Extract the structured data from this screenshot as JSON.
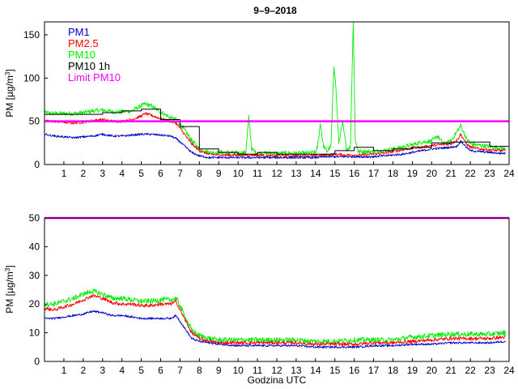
{
  "chart_data": [
    {
      "type": "line",
      "title": "9–9–2018",
      "xlabel": "",
      "ylabel": "PM [µg/m³]",
      "xlim": [
        0,
        24
      ],
      "ylim": [
        0,
        165
      ],
      "x_ticks": [
        1,
        2,
        3,
        4,
        5,
        6,
        7,
        8,
        9,
        10,
        11,
        12,
        13,
        14,
        15,
        16,
        17,
        18,
        19,
        20,
        21,
        22,
        23,
        24
      ],
      "y_ticks": [
        0,
        50,
        100,
        150
      ],
      "legend": [
        "PM1",
        "PM2.5",
        "PM10",
        "PM10 1h",
        "Limit PM10"
      ],
      "limit": {
        "name": "Limit PM10",
        "value": 50,
        "color": "#ff00ff"
      },
      "series": [
        {
          "name": "PM1",
          "color": "#0000cc",
          "noise": 1.2,
          "x": [
            0,
            0.5,
            1,
            1.5,
            2,
            2.5,
            3,
            3.5,
            4,
            4.5,
            5,
            5.5,
            6,
            6.5,
            6.8,
            7,
            7.3,
            7.6,
            8,
            8.5,
            9,
            9.5,
            10,
            10.5,
            11,
            11.5,
            12,
            12.5,
            13,
            13.5,
            14,
            14.5,
            15,
            15.5,
            16,
            16.5,
            17,
            17.5,
            18,
            18.5,
            19,
            19.5,
            20,
            20.5,
            21,
            21.3,
            21.5,
            21.8,
            22,
            22.5,
            23,
            23.5,
            23.8
          ],
          "y": [
            35,
            33,
            32,
            31,
            32,
            33,
            35,
            33,
            33,
            34,
            35,
            35,
            34,
            33,
            30,
            26,
            20,
            14,
            10,
            8,
            8,
            8,
            8,
            8,
            8,
            8,
            8,
            8,
            8,
            8,
            8,
            9,
            9,
            9,
            9,
            9,
            9,
            10,
            11,
            12,
            14,
            16,
            18,
            19,
            20,
            21,
            27,
            20,
            16,
            15,
            14,
            13,
            13
          ]
        },
        {
          "name": "PM2.5",
          "color": "#ff0000",
          "noise": 1.6,
          "x": [
            0,
            0.5,
            1,
            1.5,
            2,
            2.5,
            3,
            3.5,
            4,
            4.5,
            5,
            5.2,
            5.5,
            6,
            6.5,
            6.8,
            7,
            7.3,
            7.6,
            8,
            8.5,
            9,
            9.5,
            10,
            10.5,
            11,
            11.5,
            12,
            12.5,
            13,
            13.5,
            14,
            14.5,
            15,
            15.5,
            16,
            16.5,
            17,
            17.5,
            18,
            18.5,
            19,
            19.5,
            20,
            20.5,
            21,
            21.3,
            21.5,
            21.8,
            22,
            22.5,
            23,
            23.5,
            23.8
          ],
          "y": [
            50,
            50,
            49,
            48,
            49,
            51,
            52,
            50,
            50,
            52,
            56,
            59,
            57,
            53,
            50,
            48,
            42,
            33,
            24,
            16,
            12,
            11,
            11,
            11,
            11,
            11,
            10,
            10,
            10,
            10,
            10,
            10,
            11,
            12,
            11,
            11,
            11,
            12,
            13,
            15,
            17,
            19,
            20,
            22,
            23,
            24,
            28,
            35,
            24,
            20,
            18,
            17,
            16,
            16
          ]
        },
        {
          "name": "PM10",
          "color": "#00ee00",
          "noise": 2.5,
          "x": [
            0,
            0.5,
            1,
            1.5,
            2,
            2.5,
            3,
            3.5,
            4,
            4.5,
            5,
            5.2,
            5.5,
            6,
            6.5,
            6.8,
            7,
            7.3,
            7.6,
            8,
            8.5,
            9,
            9.5,
            10,
            10.4,
            10.55,
            10.7,
            10.9,
            11,
            11.5,
            12,
            12.5,
            13,
            13.5,
            14,
            14.1,
            14.25,
            14.4,
            14.6,
            14.8,
            14.95,
            15.05,
            15.2,
            15.4,
            15.6,
            15.8,
            15.95,
            16.05,
            16.2,
            16.5,
            17,
            17.5,
            18,
            18.5,
            19,
            19.5,
            20,
            20.3,
            20.6,
            21,
            21.3,
            21.5,
            21.8,
            22,
            22.5,
            23,
            23.5,
            23.8
          ],
          "y": [
            60,
            59,
            59,
            59,
            60,
            62,
            63,
            61,
            61,
            62,
            68,
            70,
            68,
            61,
            54,
            52,
            47,
            38,
            28,
            18,
            14,
            14,
            14,
            13,
            14,
            55,
            18,
            14,
            13,
            13,
            13,
            13,
            13,
            13,
            14,
            20,
            48,
            22,
            15,
            22,
            115,
            90,
            25,
            48,
            18,
            20,
            168,
            30,
            15,
            15,
            15,
            16,
            18,
            20,
            23,
            26,
            27,
            33,
            24,
            27,
            38,
            45,
            30,
            24,
            22,
            21,
            19,
            18
          ]
        },
        {
          "name": "PM10 1h",
          "color": "#000000",
          "step": true,
          "noise": 0,
          "x": [
            0,
            1,
            2,
            3,
            4,
            5,
            6,
            7,
            8,
            9,
            10,
            11,
            12,
            13,
            14,
            15,
            16,
            17,
            18,
            19,
            20,
            21,
            22,
            23,
            24
          ],
          "y": [
            58,
            58,
            58,
            60,
            62,
            64,
            52,
            44,
            18,
            14,
            12,
            14,
            12,
            12,
            12,
            16,
            20,
            16,
            18,
            20,
            25,
            26,
            26,
            21,
            18
          ]
        }
      ]
    },
    {
      "type": "line",
      "title": "",
      "xlabel": "Godzina UTC",
      "ylabel": "PM [µg/m³]",
      "xlim": [
        0,
        24
      ],
      "ylim": [
        0,
        50
      ],
      "x_ticks": [
        1,
        2,
        3,
        4,
        5,
        6,
        7,
        8,
        9,
        10,
        11,
        12,
        13,
        14,
        15,
        16,
        17,
        18,
        19,
        20,
        21,
        22,
        23,
        24
      ],
      "y_ticks": [
        0,
        10,
        20,
        30,
        40,
        50
      ],
      "limit": {
        "name": "Limit PM10",
        "value": 50,
        "color": "#ff00ff"
      },
      "series": [
        {
          "name": "PM1",
          "color": "#0000cc",
          "noise": 0.35,
          "x": [
            0,
            0.5,
            1,
            1.5,
            2,
            2.5,
            3,
            3.5,
            4,
            4.5,
            5,
            5.5,
            6,
            6.5,
            6.8,
            7,
            7.3,
            7.6,
            8,
            8.5,
            9,
            10,
            11,
            12,
            13,
            14,
            15,
            16,
            17,
            18,
            19,
            20,
            21,
            22,
            23,
            23.8
          ],
          "y": [
            15,
            15,
            15.5,
            16,
            16.5,
            17.5,
            17,
            16,
            16,
            15.5,
            15,
            15,
            15,
            15,
            16,
            14,
            11,
            8,
            7,
            6.5,
            6,
            5.5,
            5.5,
            5.5,
            5.5,
            5,
            5,
            5,
            5.5,
            5.5,
            6,
            6,
            6.5,
            6.5,
            6.5,
            7
          ]
        },
        {
          "name": "PM2.5",
          "color": "#ff0000",
          "noise": 0.6,
          "x": [
            0,
            0.5,
            1,
            1.5,
            2,
            2.5,
            3,
            3.5,
            4,
            4.5,
            5,
            5.5,
            6,
            6.5,
            6.8,
            7,
            7.3,
            7.6,
            8,
            8.5,
            9,
            10,
            11,
            12,
            13,
            14,
            15,
            16,
            17,
            18,
            19,
            20,
            21,
            22,
            23,
            23.8
          ],
          "y": [
            18.5,
            18,
            19,
            20,
            21.5,
            23,
            22,
            20.5,
            20,
            20,
            19.5,
            19.5,
            20,
            20,
            21,
            18,
            14,
            10,
            8,
            7,
            6.5,
            6.5,
            6.5,
            6.5,
            6.5,
            6,
            6,
            6,
            6.5,
            6.5,
            7,
            7.5,
            8,
            8,
            8,
            8.5
          ]
        },
        {
          "name": "PM10",
          "color": "#00ee00",
          "noise": 0.9,
          "x": [
            0,
            0.5,
            1,
            1.5,
            2,
            2.5,
            3,
            3.5,
            4,
            4.5,
            5,
            5.5,
            6,
            6.5,
            6.8,
            7,
            7.3,
            7.6,
            8,
            8.5,
            9,
            10,
            11,
            12,
            13,
            14,
            15,
            16,
            17,
            18,
            19,
            20,
            21,
            22,
            23,
            23.8
          ],
          "y": [
            20,
            20,
            21,
            22,
            23.5,
            24.5,
            23.5,
            22,
            22,
            21.5,
            21,
            21,
            21.5,
            21.5,
            22,
            19.5,
            15,
            11,
            9,
            8,
            7.5,
            7.5,
            7.5,
            7.5,
            7.5,
            7,
            7,
            7.5,
            7.5,
            7.5,
            8.5,
            9,
            9.5,
            9.5,
            9.5,
            10
          ]
        }
      ]
    }
  ]
}
